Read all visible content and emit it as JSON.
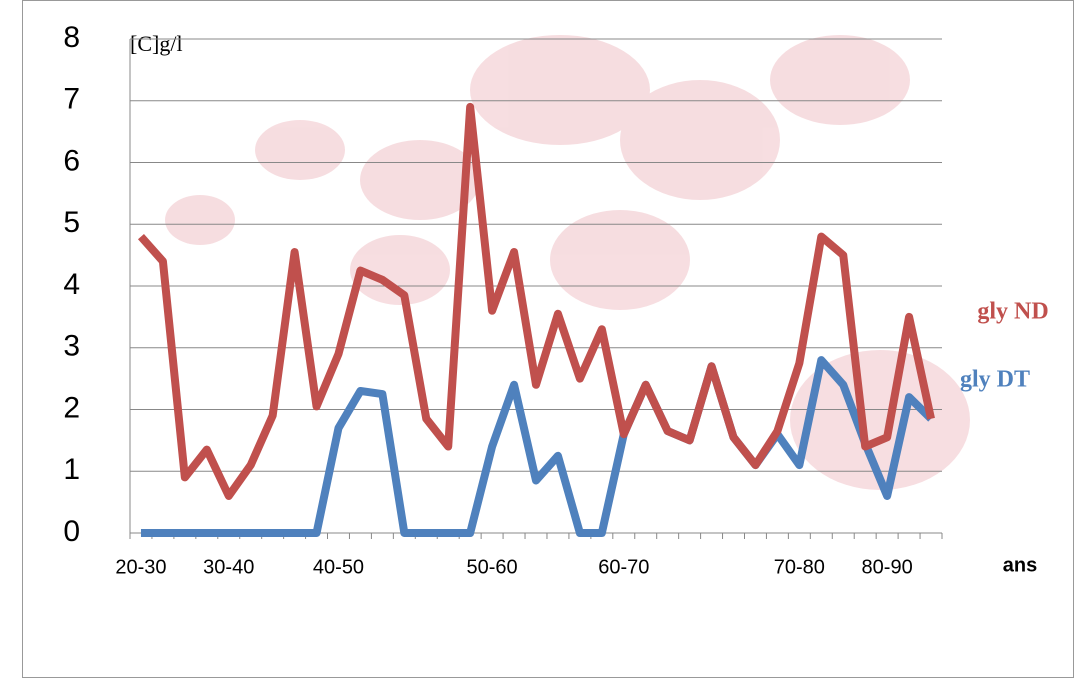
{
  "chart_data": {
    "type": "line",
    "y_axis_title": "[C]g/l",
    "x_axis_title": "ans",
    "categories": [
      "20-30",
      null,
      null,
      null,
      "30-40",
      null,
      null,
      null,
      null,
      "40-50",
      null,
      null,
      null,
      null,
      null,
      null,
      "50-60",
      null,
      null,
      null,
      null,
      null,
      "60-70",
      null,
      null,
      null,
      null,
      null,
      null,
      null,
      "70-80",
      null,
      null,
      null,
      "80-90",
      null,
      null
    ],
    "series": [
      {
        "name": "gly ND",
        "color": "#c0504d",
        "values": [
          4.8,
          4.4,
          0.9,
          1.35,
          0.6,
          1.1,
          1.9,
          4.55,
          2.05,
          2.9,
          4.25,
          4.1,
          3.85,
          1.85,
          1.4,
          6.9,
          3.6,
          4.55,
          2.4,
          3.55,
          2.5,
          3.3,
          1.6,
          2.4,
          1.65,
          1.5,
          2.7,
          1.55,
          1.1,
          1.65,
          2.75,
          4.8,
          4.5,
          1.4,
          1.55,
          3.5,
          1.85
        ]
      },
      {
        "name": "gly DT",
        "color": "#4f81bd",
        "values": [
          0,
          0,
          0,
          0,
          0,
          0,
          0,
          0,
          0,
          1.7,
          2.3,
          2.25,
          0,
          0,
          0,
          0,
          1.4,
          2.4,
          0.85,
          1.25,
          0,
          0,
          1.6,
          2.4,
          1.65,
          1.5,
          2.7,
          1.55,
          1.1,
          1.6,
          1.1,
          2.8,
          2.4,
          1.45,
          0.6,
          2.2,
          1.85
        ]
      }
    ],
    "ylim": [
      0,
      8
    ],
    "yticks": [
      0,
      1,
      2,
      3,
      4,
      5,
      6,
      7,
      8
    ],
    "grid": true
  }
}
